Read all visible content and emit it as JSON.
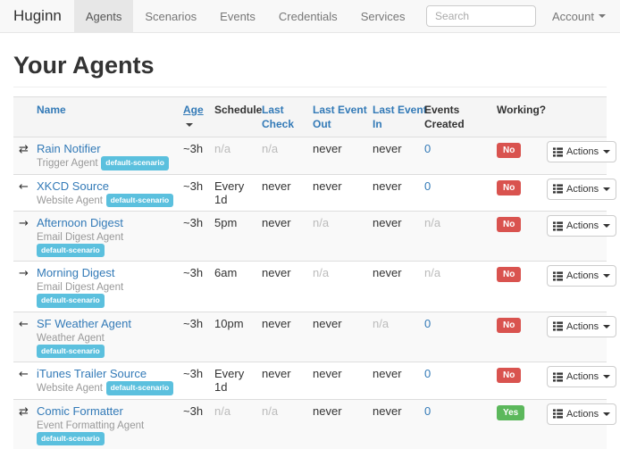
{
  "colors": {
    "link": "#337ab7",
    "scenario_badge": "#5bc0de",
    "working_no": "#d9534f",
    "working_yes": "#5cb85c",
    "navbar_bg": "#f8f8f8",
    "navbar_active_bg": "#e7e7e7",
    "header_row_bg": "#f5f5f5",
    "stripe_bg": "#f9f9f9"
  },
  "navbar": {
    "brand": "Huginn",
    "items": [
      {
        "label": "Agents",
        "active": true
      },
      {
        "label": "Scenarios",
        "active": false
      },
      {
        "label": "Events",
        "active": false
      },
      {
        "label": "Credentials",
        "active": false
      },
      {
        "label": "Services",
        "active": false
      }
    ],
    "search": {
      "placeholder": "Search"
    },
    "account": {
      "label": "Account"
    }
  },
  "page": {
    "title": "Your Agents"
  },
  "agents_table": {
    "columns": [
      {
        "key": "name",
        "label": "Name",
        "sortable": true
      },
      {
        "key": "age",
        "label": "Age",
        "sortable": true,
        "sorted": "desc"
      },
      {
        "key": "schedule",
        "label": "Schedule",
        "sortable": false
      },
      {
        "key": "last-check",
        "label": "Last\nCheck",
        "sortable": true
      },
      {
        "key": "last-event-out",
        "label": "Last Event\nOut",
        "sortable": true
      },
      {
        "key": "last-event-in",
        "label": "Last Event\nIn",
        "sortable": true
      },
      {
        "key": "events-created",
        "label": "Events\nCreated",
        "sortable": false
      },
      {
        "key": "working",
        "label": "Working?",
        "sortable": false
      }
    ],
    "actions_label": "Actions",
    "rows": [
      {
        "icon": "transfer",
        "name": "Rain Notifier",
        "type": "Trigger Agent",
        "scenarios": [
          "default-scenario"
        ],
        "age": "~3h",
        "schedule": "n/a",
        "last_check": "n/a",
        "last_event_out": "never",
        "last_event_in": "never",
        "events_created": "0",
        "working": "No"
      },
      {
        "icon": "arrow-left",
        "name": "XKCD Source",
        "type": "Website Agent",
        "scenarios": [
          "default-scenario"
        ],
        "age": "~3h",
        "schedule": "Every 1d",
        "last_check": "never",
        "last_event_out": "never",
        "last_event_in": "never",
        "events_created": "0",
        "working": "No"
      },
      {
        "icon": "arrow-right",
        "name": "Afternoon Digest",
        "type": "Email Digest Agent",
        "scenarios": [
          "default-scenario"
        ],
        "age": "~3h",
        "schedule": "5pm",
        "last_check": "never",
        "last_event_out": "n/a",
        "last_event_in": "never",
        "events_created": "n/a",
        "working": "No"
      },
      {
        "icon": "arrow-right",
        "name": "Morning Digest",
        "type": "Email Digest Agent",
        "scenarios": [
          "default-scenario"
        ],
        "age": "~3h",
        "schedule": "6am",
        "last_check": "never",
        "last_event_out": "n/a",
        "last_event_in": "never",
        "events_created": "n/a",
        "working": "No"
      },
      {
        "icon": "arrow-left",
        "name": "SF Weather Agent",
        "type": "Weather Agent",
        "scenarios": [
          "default-scenario"
        ],
        "age": "~3h",
        "schedule": "10pm",
        "last_check": "never",
        "last_event_out": "never",
        "last_event_in": "n/a",
        "events_created": "0",
        "working": "No"
      },
      {
        "icon": "arrow-left",
        "name": "iTunes Trailer Source",
        "type": "Website Agent",
        "scenarios": [
          "default-scenario"
        ],
        "age": "~3h",
        "schedule": "Every 1d",
        "last_check": "never",
        "last_event_out": "never",
        "last_event_in": "never",
        "events_created": "0",
        "working": "No"
      },
      {
        "icon": "transfer",
        "name": "Comic Formatter",
        "type": "Event Formatting Agent",
        "scenarios": [
          "default-scenario"
        ],
        "age": "~3h",
        "schedule": "n/a",
        "last_check": "n/a",
        "last_event_out": "never",
        "last_event_in": "never",
        "events_created": "0",
        "working": "Yes"
      }
    ]
  }
}
